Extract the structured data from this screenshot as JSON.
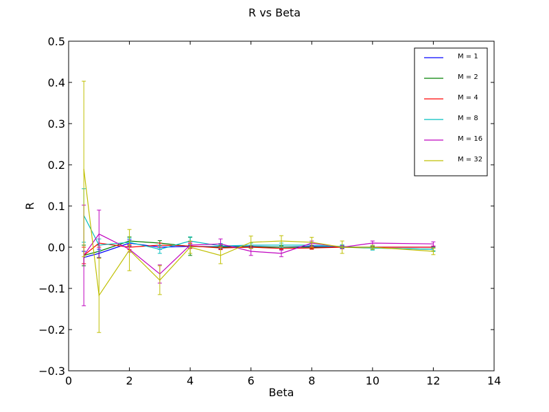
{
  "chart_data": {
    "type": "line",
    "title": "R vs Beta",
    "xlabel": "Beta",
    "ylabel": "R",
    "xlim": [
      0,
      14
    ],
    "ylim": [
      -0.3,
      0.5
    ],
    "xticks": [
      0,
      2,
      4,
      6,
      8,
      10,
      12,
      14
    ],
    "yticks": [
      -0.3,
      -0.2,
      -0.1,
      0.0,
      0.1,
      0.2,
      0.3,
      0.4,
      0.5
    ],
    "xtick_labels": [
      "0",
      "2",
      "4",
      "6",
      "8",
      "10",
      "12",
      "14"
    ],
    "ytick_labels": [
      "−0.3",
      "−0.2",
      "−0.1",
      "0.0",
      "0.1",
      "0.2",
      "0.3",
      "0.4",
      "0.5"
    ],
    "grid": false,
    "legend_position": "top-right",
    "x": [
      0.5,
      1,
      2,
      3,
      4,
      5,
      6,
      7,
      8,
      9,
      10,
      12
    ],
    "series": [
      {
        "name": "M = 1",
        "color": "#0000ff",
        "values": [
          -0.025,
          -0.015,
          0.01,
          0.0,
          0.002,
          0.001,
          0.002,
          0.0,
          0.002,
          0.0,
          0.0,
          0.0
        ],
        "errors": [
          0.015,
          0.01,
          0.008,
          0.005,
          0.004,
          0.003,
          0.003,
          0.003,
          0.003,
          0.003,
          0.002,
          0.002
        ]
      },
      {
        "name": "M = 2",
        "color": "#008000",
        "values": [
          -0.02,
          -0.01,
          0.015,
          0.01,
          0.002,
          0.0,
          0.001,
          0.0,
          0.0,
          0.0,
          -0.002,
          -0.005
        ],
        "errors": [
          0.025,
          0.015,
          0.01,
          0.006,
          0.022,
          0.005,
          0.004,
          0.004,
          0.004,
          0.003,
          0.004,
          0.004
        ]
      },
      {
        "name": "M = 4",
        "color": "#ff0000",
        "values": [
          -0.02,
          0.01,
          0.0,
          0.005,
          0.003,
          -0.002,
          0.0,
          -0.003,
          -0.002,
          0.0,
          0.0,
          0.0
        ],
        "errors": [
          0.02,
          0.01,
          0.006,
          0.005,
          0.006,
          0.004,
          0.003,
          0.003,
          0.003,
          0.002,
          0.002,
          0.002
        ]
      },
      {
        "name": "M = 8",
        "color": "#00bfbf",
        "values": [
          0.077,
          0.005,
          0.012,
          -0.005,
          0.015,
          0.003,
          0.005,
          0.005,
          0.005,
          0.002,
          -0.002,
          -0.005
        ],
        "errors": [
          0.065,
          0.015,
          0.01,
          0.01,
          0.01,
          0.006,
          0.005,
          0.005,
          0.005,
          0.004,
          0.005,
          0.005
        ]
      },
      {
        "name": "M = 16",
        "color": "#bf00bf",
        "values": [
          -0.02,
          0.032,
          -0.005,
          -0.065,
          0.005,
          0.008,
          -0.01,
          -0.015,
          0.01,
          0.0,
          0.01,
          0.008
        ],
        "errors": [
          0.122,
          0.058,
          0.007,
          0.022,
          0.007,
          0.012,
          0.01,
          0.008,
          0.005,
          0.004,
          0.005,
          0.005
        ]
      },
      {
        "name": "M = 32",
        "color": "#bfbf00",
        "values": [
          0.19,
          -0.117,
          -0.007,
          -0.08,
          0.0,
          -0.02,
          0.012,
          0.015,
          0.012,
          0.0,
          0.0,
          -0.01
        ],
        "errors": [
          0.213,
          0.09,
          0.05,
          0.035,
          0.015,
          0.02,
          0.015,
          0.013,
          0.012,
          0.015,
          0.005,
          0.008
        ]
      }
    ]
  }
}
